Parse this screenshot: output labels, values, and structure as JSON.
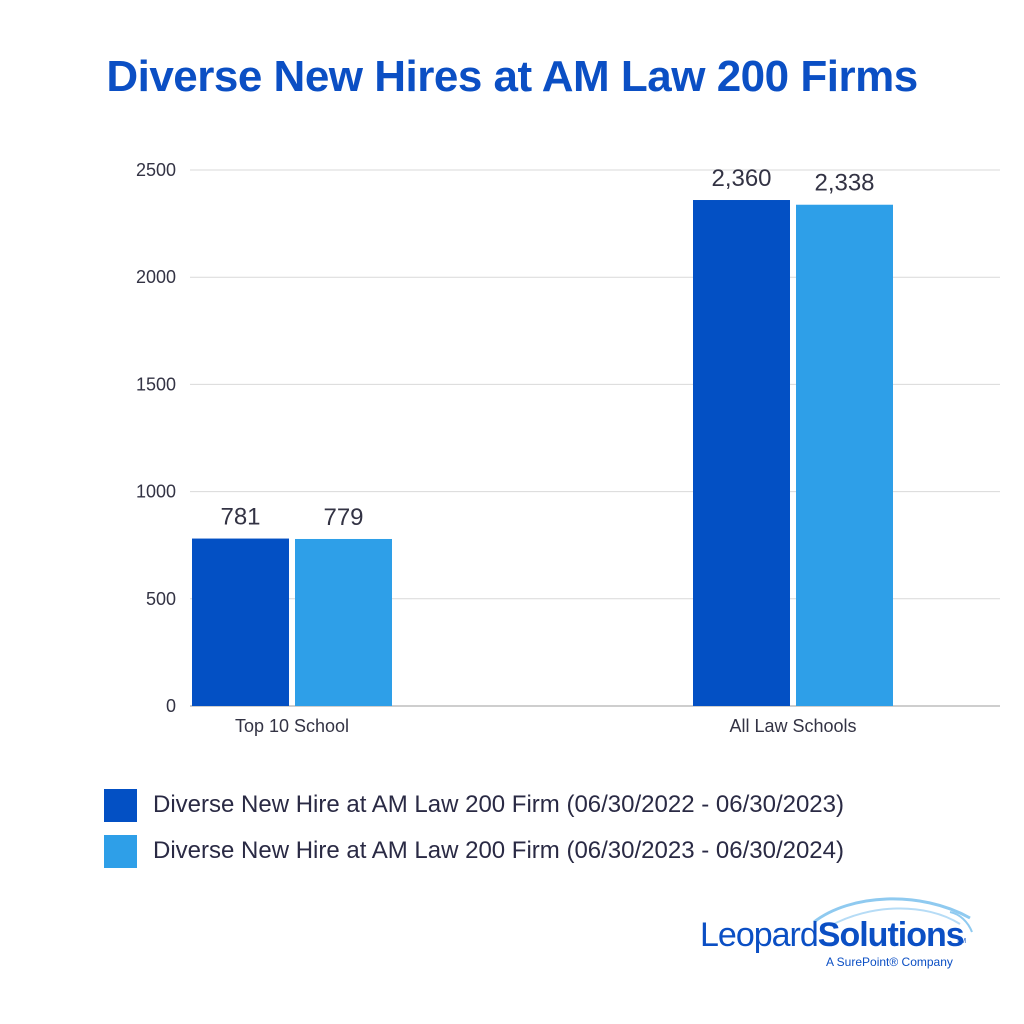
{
  "title": "Diverse New Hires at AM Law 200 Firms",
  "colors": {
    "title": "#0b4fc4",
    "series1": "#0350c4",
    "series2": "#2e9fe8",
    "grid": "#d9d9d9",
    "axis_text": "#333344"
  },
  "chart_data": {
    "type": "bar",
    "categories": [
      "Top 10 School",
      "All Law Schools"
    ],
    "series": [
      {
        "name": "Diverse New Hire at AM Law 200 Firm (06/30/2022 - 06/30/2023)",
        "values": [
          781,
          2360
        ],
        "labels": [
          "781",
          "2,360"
        ]
      },
      {
        "name": "Diverse New Hire at AM Law 200 Firm (06/30/2023 - 06/30/2024)",
        "values": [
          779,
          2338
        ],
        "labels": [
          "779",
          "2,338"
        ]
      }
    ],
    "y_ticks": [
      0,
      500,
      1000,
      1500,
      2000,
      2500
    ],
    "ylim": [
      0,
      2500
    ],
    "grid": true,
    "legend_position": "bottom-left"
  },
  "logo": {
    "brand_light": "Leopard",
    "brand_bold": "Solutions",
    "tm": "TM",
    "tagline": "A SurePoint® Company"
  }
}
